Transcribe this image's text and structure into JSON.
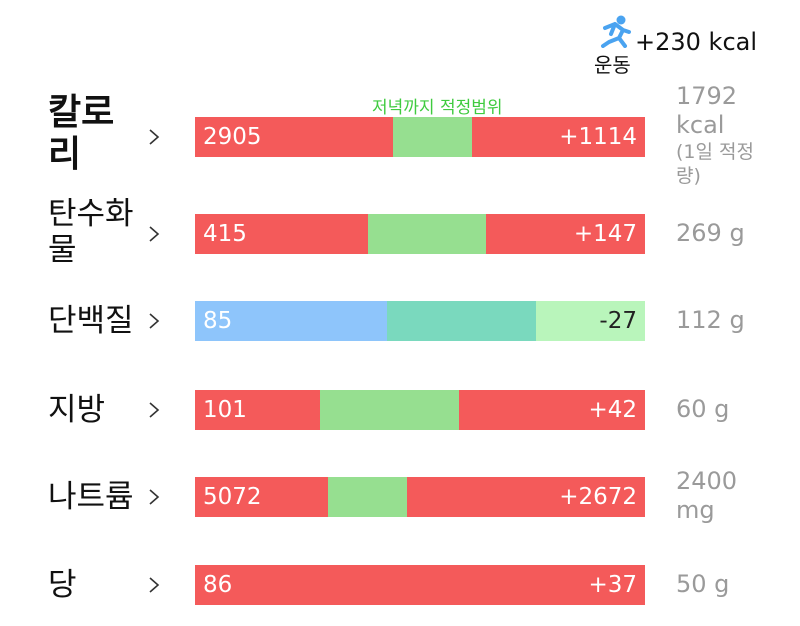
{
  "exercise": {
    "label": "운동",
    "value": "+230 kcal"
  },
  "range_label": "저녁까지 적정범위",
  "rows": [
    {
      "name": "칼로리",
      "intake": "2905",
      "diff": "+1114",
      "target": "1792 kcal",
      "target_note": "(1일 적정량)"
    },
    {
      "name": "탄수화물",
      "intake": "415",
      "diff": "+147",
      "target": "269 g"
    },
    {
      "name": "단백질",
      "intake": "85",
      "diff": "-27",
      "target": "112 g"
    },
    {
      "name": "지방",
      "intake": "101",
      "diff": "+42",
      "target": "60 g"
    },
    {
      "name": "나트륨",
      "intake": "5072",
      "diff": "+2672",
      "target": "2400 mg"
    },
    {
      "name": "당",
      "intake": "86",
      "diff": "+37",
      "target": "50 g"
    }
  ]
}
